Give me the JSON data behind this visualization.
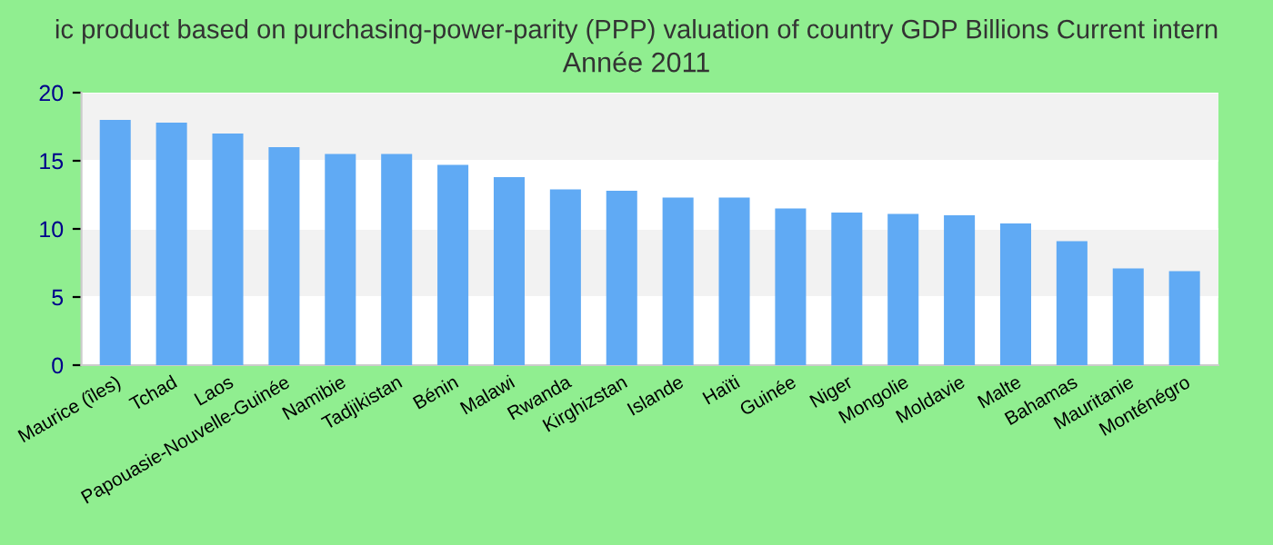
{
  "chart_data": {
    "type": "bar",
    "title": "ic product based on purchasing-power-parity (PPP) valuation of country GDP Billions Current intern",
    "subtitle": "Année 2011",
    "categories": [
      "Maurice (îles)",
      "Tchad",
      "Laos",
      "Papouasie-Nouvelle-Guinée",
      "Namibie",
      "Tadjikistan",
      "Bénin",
      "Malawi",
      "Rwanda",
      "Kirghizstan",
      "Islande",
      "Haïti",
      "Guinée",
      "Niger",
      "Mongolie",
      "Moldavie",
      "Malte",
      "Bahamas",
      "Mauritanie",
      "Monténégro"
    ],
    "values": [
      18.0,
      17.8,
      17.0,
      16.0,
      15.5,
      15.5,
      14.7,
      13.8,
      12.9,
      12.8,
      12.3,
      12.3,
      11.5,
      11.2,
      11.1,
      11.0,
      10.4,
      9.1,
      7.1,
      6.9
    ],
    "color": "#60aaf4",
    "ylim": [
      0,
      20
    ],
    "yticks": [
      0,
      5,
      10,
      15,
      20
    ],
    "grid": "y",
    "legend": false
  }
}
